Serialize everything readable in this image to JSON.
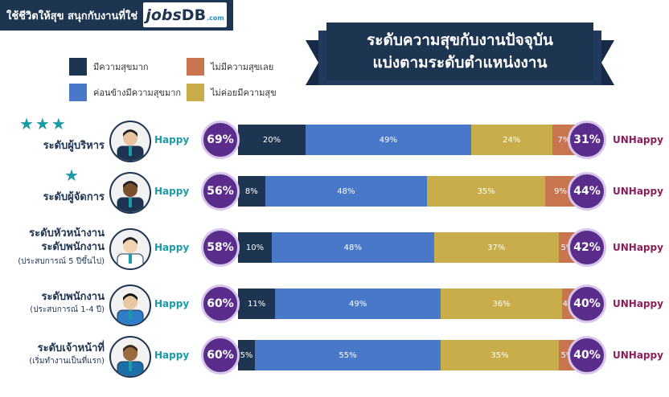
{
  "header": {
    "tagline": "ใช้ชีวิตให้สุข สนุกกับงานที่ใช่",
    "logo_jobs": "jobs",
    "logo_db": "DB",
    "logo_com": ".com"
  },
  "banner": {
    "line1": "ระดับความสุขกับงานปัจจุบัน",
    "line2": "แบ่งตามระดับตำแหน่งงาน"
  },
  "legend": [
    {
      "label": "มีความสุขมาก",
      "color": "#1e3552"
    },
    {
      "label": "ค่อนข้างมีความสุขมาก",
      "color": "#4a78c8"
    },
    {
      "label": "ไม่มีความสุขเลย",
      "color": "#c87550"
    },
    {
      "label": "ไม่ค่อยมีความสุข",
      "color": "#c9ad4a"
    }
  ],
  "happy_word": "Happy",
  "unhappy_word": "UNHappy",
  "chart_data": {
    "type": "bar",
    "stacked": true,
    "orientation": "horizontal",
    "categories": [
      "ระดับผู้บริหาร",
      "ระดับผู้จัดการ",
      "ระดับหัวหน้างาน ระดับพนักงาน",
      "ระดับพนักงาน",
      "ระดับเจ้าหน้าที่"
    ],
    "subtitles": [
      "",
      "",
      "(ประสบการณ์ 5 ปีขึ้นไป)",
      "(ประสบการณ์ 1-4 ปี)",
      "(เริ่มทำงานเป็นที่แรก)"
    ],
    "stars": [
      3,
      1,
      0,
      0,
      0
    ],
    "series": [
      {
        "name": "มีความสุขมาก",
        "color": "#1e3552",
        "values": [
          20,
          8,
          10,
          11,
          5
        ]
      },
      {
        "name": "ค่อนข้างมีความสุขมาก",
        "color": "#4a78c8",
        "values": [
          49,
          48,
          48,
          49,
          55
        ]
      },
      {
        "name": "ไม่ค่อยมีความสุข",
        "color": "#c9ad4a",
        "values": [
          24,
          35,
          37,
          36,
          35
        ]
      },
      {
        "name": "ไม่มีความสุขเลย",
        "color": "#c87550",
        "values": [
          7,
          9,
          5,
          4,
          5
        ]
      }
    ],
    "happy_totals": [
      "69%",
      "56%",
      "58%",
      "60%",
      "60%"
    ],
    "unhappy_totals": [
      "31%",
      "44%",
      "42%",
      "40%",
      "40%"
    ]
  }
}
